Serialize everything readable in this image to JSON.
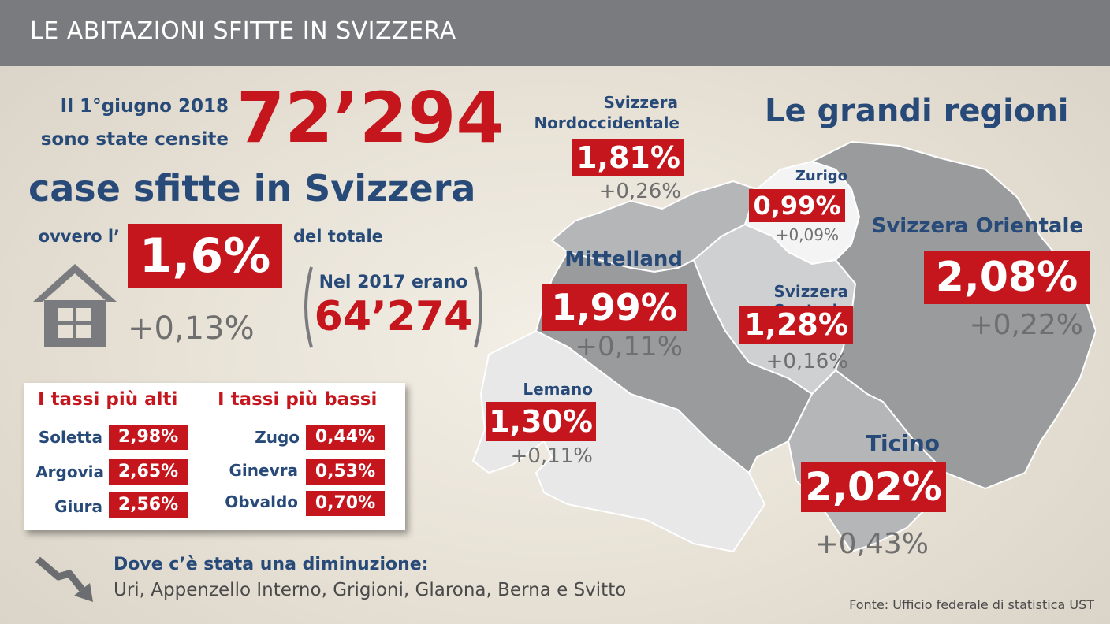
{
  "header": {
    "title": "LE ABITAZIONI SFITTE IN SVIZZERA"
  },
  "intro": {
    "line1": "Il 1°giugno 2018",
    "line2": "sono state censite",
    "big_number": "72’294",
    "line3": "case sfitte in Svizzera",
    "ovvero": "ovvero l’",
    "percent": "1,6%",
    "del_totale": "del totale",
    "change": "+0,13%",
    "prev_label": "Nel 2017 erano",
    "prev_value": "64’274"
  },
  "rates": {
    "high_title": "I tassi più alti",
    "low_title": "I tassi più bassi",
    "high": [
      {
        "name": "Soletta",
        "value": "2,98%"
      },
      {
        "name": "Argovia",
        "value": "2,65%"
      },
      {
        "name": "Giura",
        "value": "2,56%"
      }
    ],
    "low": [
      {
        "name": "Zugo",
        "value": "0,44%"
      },
      {
        "name": "Ginevra",
        "value": "0,53%"
      },
      {
        "name": "Obvaldo",
        "value": "0,70%"
      }
    ]
  },
  "decrease": {
    "title": "Dove c’è stata una diminuzione:",
    "list": "Uri, Appenzello Interno, Grigioni, Glarona, Berna e Svitto"
  },
  "map": {
    "title": "Le grandi regioni",
    "regions": [
      {
        "name": "Svizzera Nordoccidentale",
        "line1": "Svizzera",
        "line2": "Nordoccidentale",
        "value": "1,81%",
        "change": "+0,26%"
      },
      {
        "name": "Zurigo",
        "value": "0,99%",
        "change": "+0,09%"
      },
      {
        "name": "Svizzera Orientale",
        "value": "2,08%",
        "change": "+0,22%"
      },
      {
        "name": "Mittelland",
        "value": "1,99%",
        "change": "+0,11%"
      },
      {
        "name": "Svizzera Centrale",
        "value": "1,28%",
        "change": "+0,16%"
      },
      {
        "name": "Lemano",
        "value": "1,30%",
        "change": "+0,11%"
      },
      {
        "name": "Ticino",
        "value": "2,02%",
        "change": "+0,43%"
      }
    ]
  },
  "source": "Fonte: Ufficio federale di statistica UST",
  "colors": {
    "red": "#c4161c",
    "blue": "#284a78",
    "header": "#7a7b7e"
  },
  "icons": [
    "house-icon",
    "arrow-down-right-icon"
  ]
}
